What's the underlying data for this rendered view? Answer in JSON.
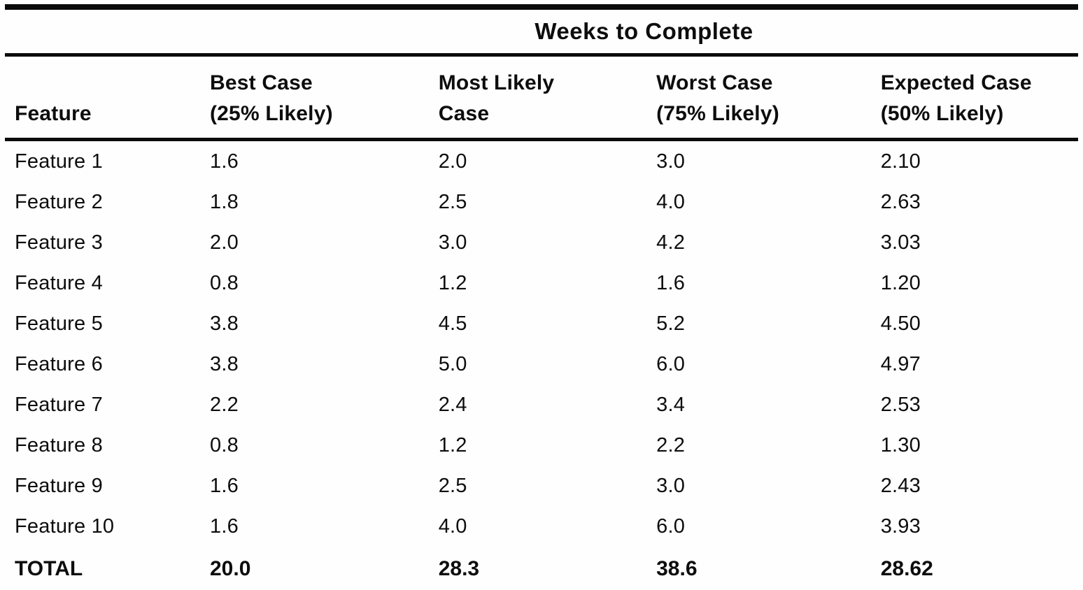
{
  "table": {
    "spanning_header": "Weeks to Complete",
    "columns": [
      {
        "line1": "",
        "line2": "Feature"
      },
      {
        "line1": "Best Case",
        "line2": "(25% Likely)"
      },
      {
        "line1": "Most Likely",
        "line2": "Case"
      },
      {
        "line1": "Worst Case",
        "line2": "(75% Likely)"
      },
      {
        "line1": "Expected Case",
        "line2": "(50% Likely)"
      }
    ],
    "rows": [
      {
        "feature": "Feature 1",
        "best": "1.6",
        "likely": "2.0",
        "worst": "3.0",
        "expected": "2.10"
      },
      {
        "feature": "Feature 2",
        "best": "1.8",
        "likely": "2.5",
        "worst": "4.0",
        "expected": "2.63"
      },
      {
        "feature": "Feature 3",
        "best": "2.0",
        "likely": "3.0",
        "worst": "4.2",
        "expected": "3.03"
      },
      {
        "feature": "Feature 4",
        "best": "0.8",
        "likely": "1.2",
        "worst": "1.6",
        "expected": "1.20"
      },
      {
        "feature": "Feature 5",
        "best": "3.8",
        "likely": "4.5",
        "worst": "5.2",
        "expected": "4.50"
      },
      {
        "feature": "Feature 6",
        "best": "3.8",
        "likely": "5.0",
        "worst": "6.0",
        "expected": "4.97"
      },
      {
        "feature": "Feature 7",
        "best": "2.2",
        "likely": "2.4",
        "worst": "3.4",
        "expected": "2.53"
      },
      {
        "feature": "Feature 8",
        "best": "0.8",
        "likely": "1.2",
        "worst": "2.2",
        "expected": "1.30"
      },
      {
        "feature": "Feature 9",
        "best": "1.6",
        "likely": "2.5",
        "worst": "3.0",
        "expected": "2.43"
      },
      {
        "feature": "Feature 10",
        "best": "1.6",
        "likely": "4.0",
        "worst": "6.0",
        "expected": "3.93"
      }
    ],
    "total": {
      "feature": "TOTAL",
      "best": "20.0",
      "likely": "28.3",
      "worst": "38.6",
      "expected": "28.62"
    },
    "colors": {
      "ink": "#0d0d0d",
      "paper": "#fefefe"
    }
  }
}
